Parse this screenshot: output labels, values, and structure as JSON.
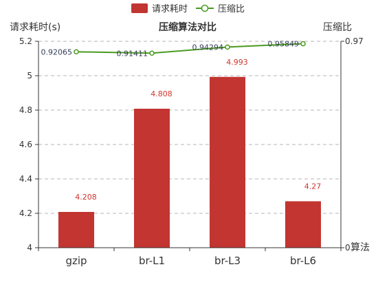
{
  "chart_data": {
    "type": "bar",
    "title": "压缩算法对比",
    "categories": [
      "gzip",
      "br-L1",
      "br-L3",
      "br-L6"
    ],
    "ylabel": "请求耗时(s)",
    "y2label": "压缩比",
    "ylim": [
      4,
      5.2
    ],
    "y_ticks": [
      "4",
      "4.2",
      "4.4",
      "4.6",
      "4.8",
      "5",
      "5.2"
    ],
    "y2lim": [
      0,
      0.97
    ],
    "y2_ticks": [
      "0",
      "0.97"
    ],
    "x_axis_tail_label": "算法",
    "grid": true,
    "legend_position": "top-center",
    "series": [
      {
        "name": "请求耗时",
        "type": "bar",
        "color": "#c23531",
        "values": [
          4.208,
          4.808,
          4.993,
          4.27
        ],
        "labels": [
          "4.208",
          "4.808",
          "4.993",
          "4.27"
        ]
      },
      {
        "name": "压缩比",
        "type": "line",
        "color": "#4a9a1f",
        "values": [
          0.92065,
          0.91411,
          0.94294,
          0.95849
        ],
        "labels": [
          "0.92065",
          "0.91411",
          "0.94294",
          "0.95849"
        ]
      }
    ]
  }
}
